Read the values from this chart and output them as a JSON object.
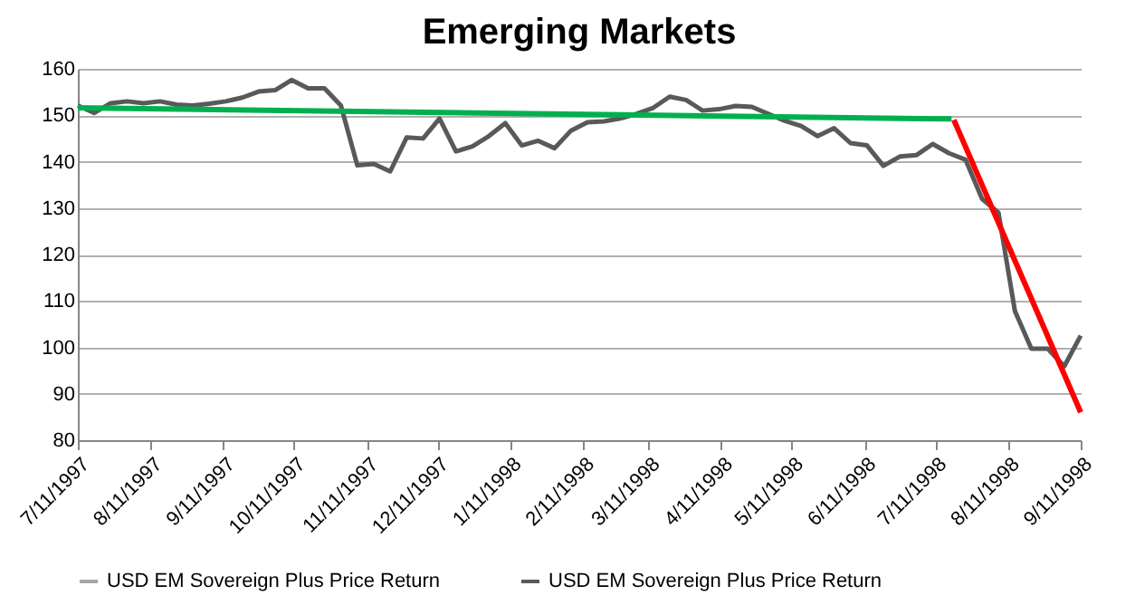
{
  "chart_data": {
    "type": "line",
    "title": "Emerging Markets",
    "x": [
      "1997-07-11",
      "1997-07-18",
      "1997-07-25",
      "1997-08-01",
      "1997-08-08",
      "1997-08-15",
      "1997-08-22",
      "1997-08-29",
      "1997-09-05",
      "1997-09-12",
      "1997-09-19",
      "1997-09-26",
      "1997-10-03",
      "1997-10-10",
      "1997-10-17",
      "1997-10-24",
      "1997-10-31",
      "1997-11-07",
      "1997-11-14",
      "1997-11-21",
      "1997-11-28",
      "1997-12-05",
      "1997-12-12",
      "1997-12-19",
      "1997-12-26",
      "1998-01-02",
      "1998-01-09",
      "1998-01-16",
      "1998-01-23",
      "1998-01-30",
      "1998-02-06",
      "1998-02-13",
      "1998-02-20",
      "1998-02-27",
      "1998-03-06",
      "1998-03-13",
      "1998-03-20",
      "1998-03-27",
      "1998-04-03",
      "1998-04-10",
      "1998-04-17",
      "1998-04-24",
      "1998-05-01",
      "1998-05-08",
      "1998-05-15",
      "1998-05-22",
      "1998-05-29",
      "1998-06-05",
      "1998-06-12",
      "1998-06-19",
      "1998-06-26",
      "1998-07-03",
      "1998-07-10",
      "1998-07-17",
      "1998-07-24",
      "1998-07-31",
      "1998-08-07",
      "1998-08-14",
      "1998-08-21",
      "1998-08-28",
      "1998-09-04",
      "1998-09-11"
    ],
    "series": [
      {
        "name": "USD EM Sovereign Plus Price Return",
        "color": "#a6a6a6",
        "values": [
          null,
          null,
          null,
          null,
          null,
          null,
          null,
          null,
          null,
          null,
          null,
          null,
          null,
          null,
          null,
          null,
          null,
          null,
          null,
          null,
          null,
          null,
          null,
          null,
          null,
          null,
          null,
          null,
          null,
          null,
          null,
          null,
          null,
          null,
          null,
          null,
          null,
          null,
          null,
          null,
          null,
          null,
          null,
          null,
          null,
          null,
          null,
          null,
          null,
          null,
          null,
          null,
          null,
          null,
          null,
          null,
          null,
          null,
          null,
          null,
          null,
          null
        ]
      },
      {
        "name": "USD EM Sovereign Plus Price Return",
        "color": "#595959",
        "values": [
          152.1,
          150.5,
          152.6,
          153,
          152.6,
          153,
          152.3,
          152.1,
          152.5,
          153,
          153.8,
          155.1,
          155.4,
          157.6,
          155.8,
          155.8,
          152.1,
          139.2,
          139.5,
          137.9,
          145.2,
          145,
          149.3,
          142.2,
          143.3,
          145.5,
          148.3,
          143.5,
          144.5,
          142.9,
          146.7,
          148.5,
          148.7,
          149.3,
          150.3,
          151.6,
          154,
          153.3,
          151,
          151.3,
          152,
          151.8,
          150.3,
          148.8,
          147.7,
          145.5,
          147.2,
          144,
          143.5,
          139.1,
          141.1,
          141.4,
          143.8,
          141.8,
          140.4,
          132,
          129,
          107.8,
          99.7,
          99.7,
          95.9,
          102.5
        ]
      },
      {
        "type": "line",
        "color": "#00b050",
        "x": [
          "1997-07-11",
          "1998-07-18"
        ],
        "values": [
          151.6,
          149.2
        ]
      },
      {
        "type": "line",
        "color": "#ff0000",
        "x": [
          "1998-07-19",
          "1998-09-11"
        ],
        "values": [
          149,
          86
        ]
      }
    ],
    "xlim": [
      "1997-07-11",
      "1998-09-11"
    ],
    "xticks": [
      {
        "value": "1997-07-11",
        "label": "7/11/1997"
      },
      {
        "value": "1997-08-11",
        "label": "8/11/1997"
      },
      {
        "value": "1997-09-11",
        "label": "9/11/1997"
      },
      {
        "value": "1997-10-11",
        "label": "10/11/1997"
      },
      {
        "value": "1997-11-11",
        "label": "11/11/1997"
      },
      {
        "value": "1997-12-11",
        "label": "12/11/1997"
      },
      {
        "value": "1998-01-11",
        "label": "1/11/1998"
      },
      {
        "value": "1998-02-11",
        "label": "2/11/1998"
      },
      {
        "value": "1998-03-11",
        "label": "3/11/1998"
      },
      {
        "value": "1998-04-11",
        "label": "4/11/1998"
      },
      {
        "value": "1998-05-11",
        "label": "5/11/1998"
      },
      {
        "value": "1998-06-11",
        "label": "6/11/1998"
      },
      {
        "value": "1998-07-11",
        "label": "7/11/1998"
      },
      {
        "value": "1998-08-11",
        "label": "8/11/1998"
      },
      {
        "value": "1998-09-11",
        "label": "9/11/1998"
      }
    ],
    "ylim": [
      80,
      160
    ],
    "yticks": [
      80,
      90,
      100,
      110,
      120,
      130,
      140,
      150,
      160
    ],
    "grid": "y",
    "legend": "bottom",
    "marker": "none",
    "line_style": "solid"
  }
}
